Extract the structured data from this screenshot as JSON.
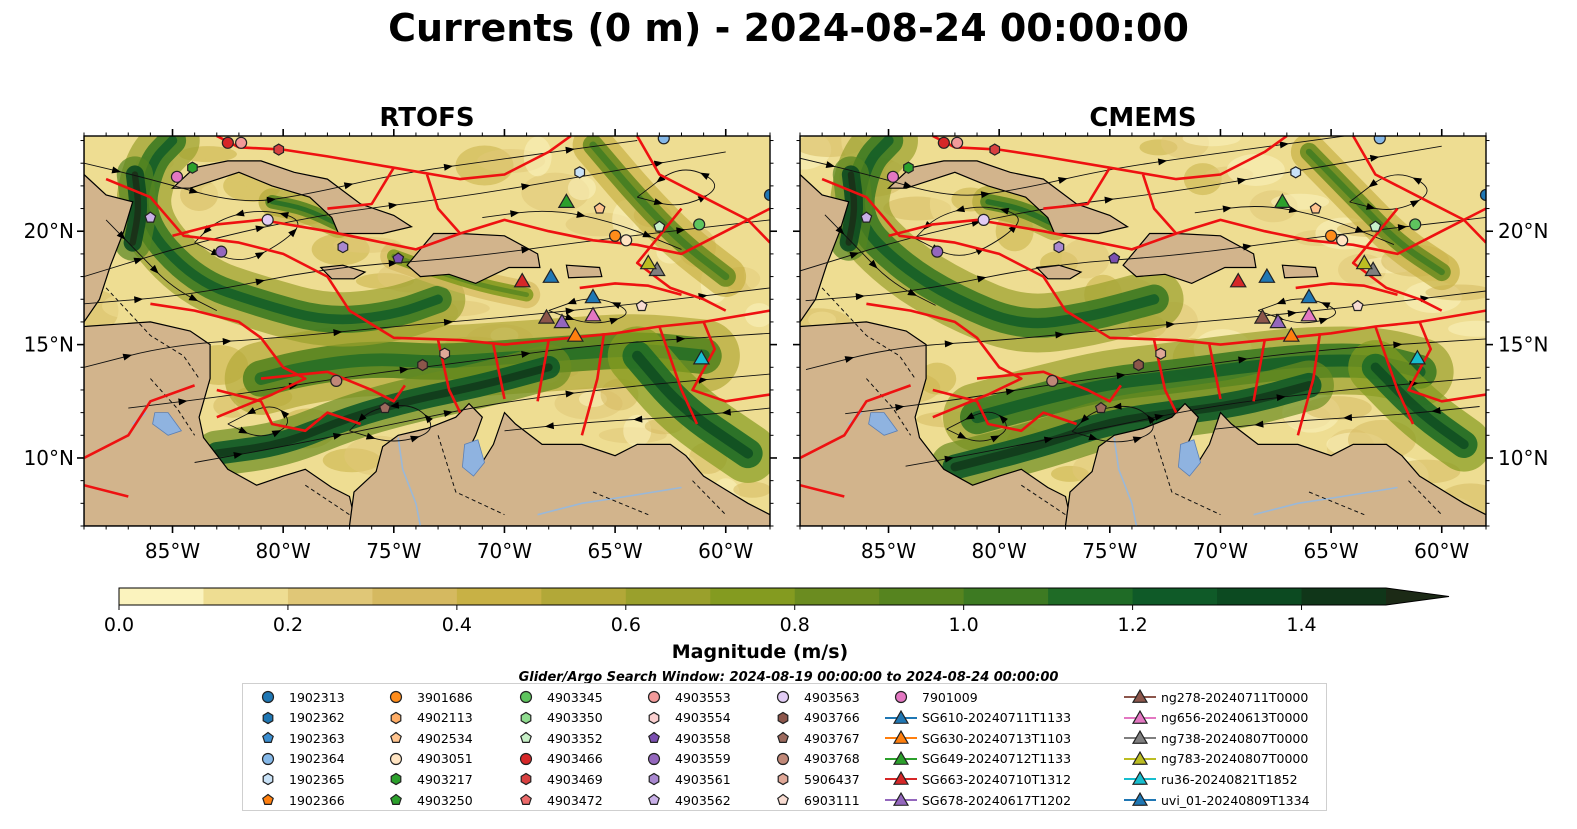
{
  "title": "Currents (0 m) - 2024-08-24 00:00:00",
  "panels": [
    {
      "title": "RTOFS",
      "variant": 0
    },
    {
      "title": "CMEMS",
      "variant": 1
    }
  ],
  "axes": {
    "lon_range": [
      -89,
      -58
    ],
    "lat_range": [
      7,
      24.2
    ],
    "x_ticks": [
      "85°W",
      "80°W",
      "75°W",
      "70°W",
      "65°W",
      "60°W"
    ],
    "x_tick_values": [
      -85,
      -80,
      -75,
      -70,
      -65,
      -60
    ],
    "y_ticks": [
      "20°N",
      "15°N",
      "10°N"
    ],
    "y_tick_values": [
      20,
      15,
      10
    ]
  },
  "colorbar": {
    "label": "Magnitude (m/s)",
    "ticks": [
      "0.0",
      "0.2",
      "0.4",
      "0.6",
      "0.8",
      "1.0",
      "1.2",
      "1.4"
    ],
    "tick_values": [
      0.0,
      0.2,
      0.4,
      0.6,
      0.8,
      1.0,
      1.2,
      1.4
    ],
    "range": [
      0,
      1.5
    ],
    "step": 0.1,
    "extend": "max",
    "colors": [
      "#fbf3be",
      "#eedd92",
      "#e0c777",
      "#d5b960",
      "#c8b145",
      "#b2a838",
      "#9aa02c",
      "#849b20",
      "#6b8c20",
      "#56841f",
      "#3d7a22",
      "#1f6b26",
      "#0f5a28",
      "#0c4a21",
      "#103619",
      "#1c2a16"
    ]
  },
  "search_window": "Glider/Argo Search Window: 2024-08-19 00:00:00 to 2024-08-24 00:00:00",
  "legend": [
    {
      "label": "1902313",
      "marker": "circle",
      "color": "#1f77b4"
    },
    {
      "label": "1902362",
      "marker": "hexagon",
      "color": "#1f77b4"
    },
    {
      "label": "1902363",
      "marker": "pentagon",
      "color": "#3b8ed0"
    },
    {
      "label": "1902364",
      "marker": "circle",
      "color": "#85b8e8"
    },
    {
      "label": "1902365",
      "marker": "hexagon",
      "color": "#c9e2f7"
    },
    {
      "label": "1902366",
      "marker": "pentagon",
      "color": "#ff7f0e"
    },
    {
      "label": "3901686",
      "marker": "circle",
      "color": "#ff8c1a"
    },
    {
      "label": "4902113",
      "marker": "hexagon",
      "color": "#ffad66"
    },
    {
      "label": "4902534",
      "marker": "pentagon",
      "color": "#ffc48f"
    },
    {
      "label": "4903051",
      "marker": "circle",
      "color": "#ffe4c2"
    },
    {
      "label": "4903217",
      "marker": "hexagon",
      "color": "#2ca02c"
    },
    {
      "label": "4903250",
      "marker": "pentagon",
      "color": "#2ca02c"
    },
    {
      "label": "4903345",
      "marker": "circle",
      "color": "#5ec45e"
    },
    {
      "label": "4903350",
      "marker": "hexagon",
      "color": "#8fdc8f"
    },
    {
      "label": "4903352",
      "marker": "pentagon",
      "color": "#c8f0c8"
    },
    {
      "label": "4903466",
      "marker": "circle",
      "color": "#d62728"
    },
    {
      "label": "4903469",
      "marker": "hexagon",
      "color": "#d84040"
    },
    {
      "label": "4903472",
      "marker": "pentagon",
      "color": "#ec6a6a"
    },
    {
      "label": "4903553",
      "marker": "circle",
      "color": "#f29a9a"
    },
    {
      "label": "4903554",
      "marker": "hexagon",
      "color": "#fbd0d0"
    },
    {
      "label": "4903558",
      "marker": "pentagon",
      "color": "#7b4fb0"
    },
    {
      "label": "4903559",
      "marker": "circle",
      "color": "#9467bd"
    },
    {
      "label": "4903561",
      "marker": "hexagon",
      "color": "#a988d0"
    },
    {
      "label": "4903562",
      "marker": "pentagon",
      "color": "#c9b0e8"
    },
    {
      "label": "4903563",
      "marker": "circle",
      "color": "#e2ccf5"
    },
    {
      "label": "4903766",
      "marker": "hexagon",
      "color": "#8c564b"
    },
    {
      "label": "4903767",
      "marker": "pentagon",
      "color": "#9c6a5e"
    },
    {
      "label": "4903768",
      "marker": "circle",
      "color": "#c08878"
    },
    {
      "label": "5906437",
      "marker": "hexagon",
      "color": "#e0a898"
    },
    {
      "label": "6903111",
      "marker": "pentagon",
      "color": "#f8dcd2"
    },
    {
      "label": "7901009",
      "marker": "circle",
      "color": "#e377c2"
    },
    {
      "label": "SG610-20240711T1133",
      "marker": "triangle-line",
      "color": "#1f77b4"
    },
    {
      "label": "SG630-20240713T1103",
      "marker": "triangle-line",
      "color": "#ff7f0e"
    },
    {
      "label": "SG649-20240712T1133",
      "marker": "triangle-line",
      "color": "#2ca02c"
    },
    {
      "label": "SG663-20240710T1312",
      "marker": "triangle-line",
      "color": "#d62728"
    },
    {
      "label": "SG678-20240617T1202",
      "marker": "triangle-line",
      "color": "#9467bd"
    },
    {
      "label": "ng278-20240711T0000",
      "marker": "triangle-line",
      "color": "#8c564b"
    },
    {
      "label": "ng656-20240613T0000",
      "marker": "triangle-line",
      "color": "#e377c2"
    },
    {
      "label": "ng738-20240807T0000",
      "marker": "triangle-line",
      "color": "#7f7f7f"
    },
    {
      "label": "ng783-20240807T0000",
      "marker": "triangle-line",
      "color": "#bcbd22"
    },
    {
      "label": "ru36-20240821T1852",
      "marker": "triangle-line",
      "color": "#17becf"
    },
    {
      "label": "uvi_01-20240809T1334",
      "marker": "triangle-line",
      "color": "#1f77b4"
    }
  ],
  "chart_data": {
    "type": "heatmap",
    "title": "Currents (0 m) - 2024-08-24 00:00:00",
    "panels": [
      "RTOFS",
      "CMEMS"
    ],
    "xlabel": "",
    "ylabel": "",
    "colorbar_label": "Magnitude (m/s)",
    "xlim": [
      -89,
      -58
    ],
    "ylim": [
      7,
      24.2
    ],
    "grid": false,
    "legend_position": "bottom",
    "gliders": [
      {
        "name": "SG610-20240711T1133",
        "lon": -66.0,
        "lat": 17.1
      },
      {
        "name": "SG630-20240713T1103",
        "lon": -66.8,
        "lat": 15.4
      },
      {
        "name": "SG649-20240712T1133",
        "lon": -67.2,
        "lat": 21.3
      },
      {
        "name": "SG663-20240710T1312",
        "lon": -69.2,
        "lat": 17.8
      },
      {
        "name": "SG678-20240617T1202",
        "lon": -67.4,
        "lat": 16.0
      },
      {
        "name": "ng278-20240711T0000",
        "lon": -68.1,
        "lat": 16.2
      },
      {
        "name": "ng656-20240613T0000",
        "lon": -66.0,
        "lat": 16.3
      },
      {
        "name": "ng738-20240807T0000",
        "lon": -63.1,
        "lat": 18.3
      },
      {
        "name": "ng783-20240807T0000",
        "lon": -63.5,
        "lat": 18.6
      },
      {
        "name": "ru36-20240821T1852",
        "lon": -61.1,
        "lat": 14.4
      },
      {
        "name": "uvi_01-20240809T1334",
        "lon": -67.9,
        "lat": 18.0
      }
    ],
    "floats": [
      {
        "name": "4903466",
        "lon": -82.5,
        "lat": 23.9
      },
      {
        "name": "4903553",
        "lon": -81.9,
        "lat": 23.9
      },
      {
        "name": "4903469",
        "lon": -80.2,
        "lat": 23.6
      },
      {
        "name": "4903217",
        "lon": -84.1,
        "lat": 22.8
      },
      {
        "name": "7901009",
        "lon": -84.8,
        "lat": 22.4
      },
      {
        "name": "4903562",
        "lon": -86.0,
        "lat": 20.6
      },
      {
        "name": "4903563",
        "lon": -80.7,
        "lat": 20.5
      },
      {
        "name": "4903559",
        "lon": -82.8,
        "lat": 19.1
      },
      {
        "name": "4903561",
        "lon": -77.3,
        "lat": 19.3
      },
      {
        "name": "4903558",
        "lon": -74.8,
        "lat": 18.8
      },
      {
        "name": "1902365",
        "lon": -66.6,
        "lat": 22.6
      },
      {
        "name": "1902313",
        "lon": -58.0,
        "lat": 21.6
      },
      {
        "name": "4903345",
        "lon": -61.2,
        "lat": 20.3
      },
      {
        "name": "4903352",
        "lon": -63.0,
        "lat": 20.2
      },
      {
        "name": "4902534",
        "lon": -65.7,
        "lat": 21.0
      },
      {
        "name": "3901686",
        "lon": -65.0,
        "lat": 19.8
      },
      {
        "name": "4903051",
        "lon": -64.5,
        "lat": 19.6
      },
      {
        "name": "1902364",
        "lon": -62.8,
        "lat": 24.1
      },
      {
        "name": "4903768",
        "lon": -77.6,
        "lat": 13.4
      },
      {
        "name": "5906437",
        "lon": -72.7,
        "lat": 14.6
      },
      {
        "name": "4903766",
        "lon": -73.7,
        "lat": 14.1
      },
      {
        "name": "4903767",
        "lon": -75.4,
        "lat": 12.2
      },
      {
        "name": "6903111",
        "lon": -63.8,
        "lat": 16.7
      }
    ]
  }
}
